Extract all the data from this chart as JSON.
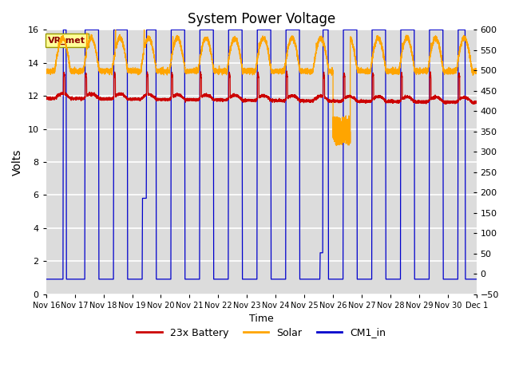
{
  "title": "System Power Voltage",
  "xlabel": "Time",
  "ylabel": "Volts",
  "annotation": "VR_met",
  "annotation_color": "#8B0000",
  "annotation_bg": "#FFFF99",
  "left_ylim": [
    0,
    16
  ],
  "right_ylim": [
    -50,
    600
  ],
  "right_yticks": [
    -50,
    0,
    50,
    100,
    150,
    200,
    250,
    300,
    350,
    400,
    450,
    500,
    550,
    600
  ],
  "left_yticks": [
    0,
    2,
    4,
    6,
    8,
    10,
    12,
    14,
    16
  ],
  "bg_color": "#DCDCDC",
  "grid_color": "#FFFFFF",
  "line_battery_color": "#CC0000",
  "line_solar_color": "#FFA500",
  "line_cm1_color": "#0000CC",
  "legend_labels": [
    "23x Battery",
    "Solar",
    "CM1_in"
  ],
  "x_tick_labels": [
    "Nov 16",
    "Nov 17",
    "Nov 18",
    "Nov 19",
    "Nov 20",
    "Nov 21",
    "Nov 22",
    "Nov 23",
    "Nov 24",
    "Nov 25",
    "Nov 26",
    "Nov 27",
    "Nov 28",
    "Nov 29",
    "Nov 30",
    "Dec 1"
  ],
  "figsize": [
    6.4,
    4.8
  ],
  "dpi": 100
}
